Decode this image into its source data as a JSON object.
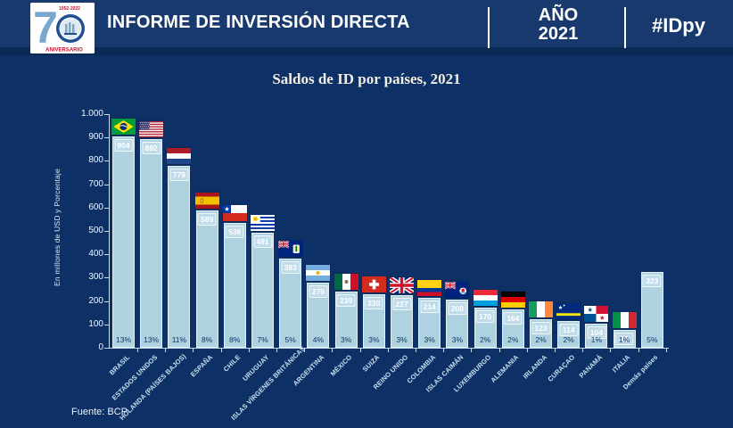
{
  "header": {
    "title": "INFORME DE INVERSIÓN DIRECTA",
    "year_label": "AÑO",
    "year_value": "2021",
    "hashtag": "#IDpy",
    "logo": {
      "big_number": "70",
      "years": "1952-2022",
      "anniversary": "ANIVERSARIO"
    }
  },
  "chart_data": {
    "type": "bar",
    "title": "Saldos de ID por países, 2021",
    "xlabel": "",
    "ylabel": "En millones de USD y Porcentaje",
    "ylim": [
      0,
      1000
    ],
    "ytick_step": 100,
    "ytick_labels": [
      "0",
      "100",
      "200",
      "300",
      "400",
      "500",
      "600",
      "700",
      "800",
      "900",
      "1.000"
    ],
    "grid": false,
    "legend_position": "none",
    "bar_color": "#aed2e0",
    "bars": [
      {
        "country": "BRASIL",
        "value": 904,
        "pct": "13%",
        "flag": "brasil"
      },
      {
        "country": "ESTADOS UNIDOS",
        "value": 892,
        "pct": "13%",
        "flag": "estados-unidos"
      },
      {
        "country": "HOLANDA (PAÍSES BAJOS)",
        "value": 779,
        "pct": "11%",
        "flag": "holanda"
      },
      {
        "country": "ESPAÑA",
        "value": 589,
        "pct": "8%",
        "flag": "espana"
      },
      {
        "country": "CHILE",
        "value": 536,
        "pct": "8%",
        "flag": "chile"
      },
      {
        "country": "URUGUAY",
        "value": 491,
        "pct": "7%",
        "flag": "uruguay"
      },
      {
        "country": "ISLAS VÍRGENES BRITÁNICAS",
        "value": 383,
        "pct": "5%",
        "flag": "islas-virgenes-britanicas"
      },
      {
        "country": "ARGENTINA",
        "value": 279,
        "pct": "4%",
        "flag": "argentina"
      },
      {
        "country": "MÉXICO",
        "value": 239,
        "pct": "3%",
        "flag": "mexico"
      },
      {
        "country": "SUIZA",
        "value": 230,
        "pct": "3%",
        "flag": "suiza"
      },
      {
        "country": "REINO UNIDO",
        "value": 227,
        "pct": "3%",
        "flag": "reino-unido"
      },
      {
        "country": "COLOMBIA",
        "value": 214,
        "pct": "3%",
        "flag": "colombia"
      },
      {
        "country": "ISLAS CAIMÁN",
        "value": 208,
        "pct": "3%",
        "flag": "islas-caiman"
      },
      {
        "country": "LUXEMBURGO",
        "value": 170,
        "pct": "2%",
        "flag": "luxemburgo"
      },
      {
        "country": "ALEMANIA",
        "value": 164,
        "pct": "2%",
        "flag": "alemania"
      },
      {
        "country": "IRLANDA",
        "value": 123,
        "pct": "2%",
        "flag": "irlanda"
      },
      {
        "country": "CURAÇAO",
        "value": 114,
        "pct": "2%",
        "flag": "curacao"
      },
      {
        "country": "PANAMÁ",
        "value": 104,
        "pct": "1%",
        "flag": "panama"
      },
      {
        "country": "ITALIA",
        "value": 75,
        "pct": "1%",
        "flag": "italia"
      },
      {
        "country": "Demás países",
        "value": 323,
        "pct": "5%",
        "flag": null
      }
    ]
  },
  "source": "Fuente: BCP",
  "colors": {
    "background": "#0d3166",
    "header_background": "#17396d",
    "header_stripe": "#0a2a54",
    "bar_fill": "#aed2e0",
    "value_text": "#ffffff",
    "pct_text": "#0e3566",
    "logo_red": "#c8102e",
    "logo_blue": "#7aa7cc"
  }
}
